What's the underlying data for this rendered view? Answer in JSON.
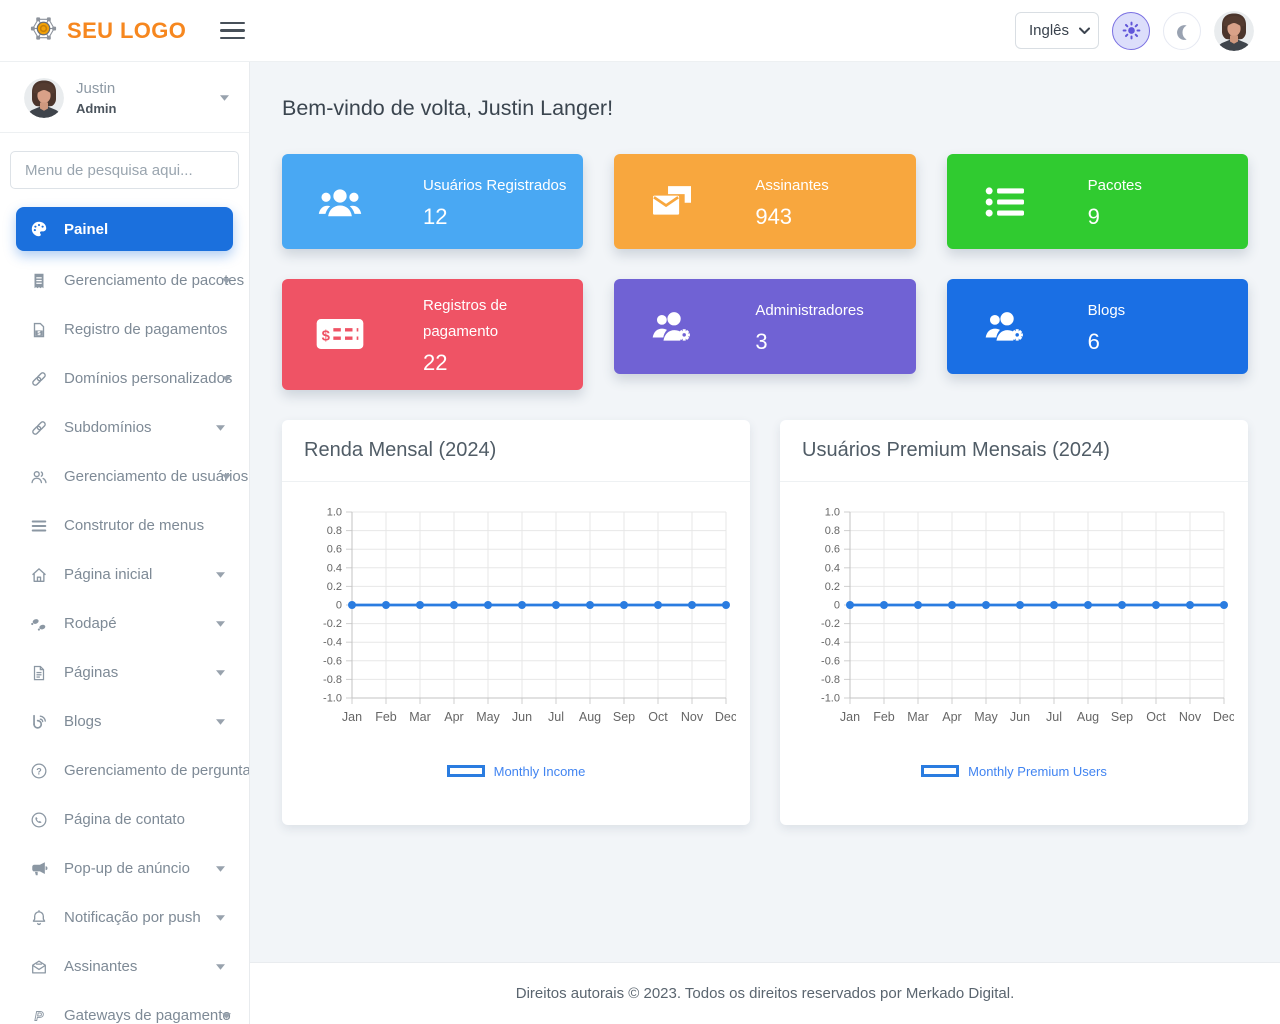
{
  "header": {
    "logo_text": "SEU LOGO",
    "language_select": {
      "value": "Inglês"
    },
    "theme": {
      "light_icon": "sun-icon",
      "dark_icon": "moon-icon"
    }
  },
  "sidebar": {
    "user": {
      "name": "Justin",
      "role": "Admin"
    },
    "search_placeholder": "Menu de pesquisa aqui...",
    "items": [
      {
        "label": "Painel",
        "icon": "palette-icon",
        "active": true,
        "caret": false
      },
      {
        "label": "Gerenciamento de pacotes",
        "icon": "receipt-icon",
        "active": false,
        "caret": true
      },
      {
        "label": "Registro de pagamentos",
        "icon": "invoice-dollar-icon",
        "active": false,
        "caret": false
      },
      {
        "label": "Domínios personalizados",
        "icon": "link-icon",
        "active": false,
        "caret": true
      },
      {
        "label": "Subdomínios",
        "icon": "link-icon",
        "active": false,
        "caret": true
      },
      {
        "label": "Gerenciamento de usuários",
        "icon": "users-outline-icon",
        "active": false,
        "caret": true
      },
      {
        "label": "Construtor de menus",
        "icon": "menu-bars-icon",
        "active": false,
        "caret": false
      },
      {
        "label": "Página inicial",
        "icon": "home-icon",
        "active": false,
        "caret": true
      },
      {
        "label": "Rodapé",
        "icon": "footprints-icon",
        "active": false,
        "caret": true
      },
      {
        "label": "Páginas",
        "icon": "file-icon",
        "active": false,
        "caret": true
      },
      {
        "label": "Blogs",
        "icon": "blog-icon",
        "active": false,
        "caret": true
      },
      {
        "label": "Gerenciamento de perguntas frequentes",
        "icon": "question-icon",
        "active": false,
        "caret": false
      },
      {
        "label": "Página de contato",
        "icon": "contact-icon",
        "active": false,
        "caret": false
      },
      {
        "label": "Pop-up de anúncio",
        "icon": "bullhorn-icon",
        "active": false,
        "caret": true
      },
      {
        "label": "Notificação por push",
        "icon": "bell-icon",
        "active": false,
        "caret": true
      },
      {
        "label": "Assinantes",
        "icon": "envelope-icon",
        "active": false,
        "caret": true
      },
      {
        "label": "Gateways de pagamento",
        "icon": "paypal-icon",
        "active": false,
        "caret": true
      }
    ]
  },
  "main": {
    "welcome": "Bem-vindo de volta, Justin Langer!",
    "stat_cards": [
      {
        "label": "Usuários Registrados",
        "value": "12",
        "color": "#49a8f3",
        "icon": "users-filled-icon"
      },
      {
        "label": "Assinantes",
        "value": "943",
        "color": "#f8a73e",
        "icon": "mail-bulk-icon"
      },
      {
        "label": "Pacotes",
        "value": "9",
        "color": "#30cb30",
        "icon": "list-icon"
      },
      {
        "label": "Registros de pagamento",
        "value": "22",
        "color": "#ef5365",
        "icon": "money-check-icon"
      },
      {
        "label": "Administradores",
        "value": "3",
        "color": "#7062d4",
        "icon": "users-gear-icon"
      },
      {
        "label": "Blogs",
        "value": "6",
        "color": "#1a6fe4",
        "icon": "users-gear-icon"
      }
    ]
  },
  "chart_data": [
    {
      "type": "line",
      "title": "Renda Mensal (2024)",
      "x": [
        "Jan",
        "Feb",
        "Mar",
        "Apr",
        "May",
        "Jun",
        "Jul",
        "Aug",
        "Sep",
        "Oct",
        "Nov",
        "Dec"
      ],
      "series": [
        {
          "name": "Monthly Income",
          "values": [
            0,
            0,
            0,
            0,
            0,
            0,
            0,
            0,
            0,
            0,
            0,
            0
          ]
        }
      ],
      "xlabel": "",
      "ylabel": "",
      "ylim": [
        -1.0,
        1.0
      ],
      "ytick_step": 0.2,
      "grid": true,
      "legend_position": "bottom",
      "line_color": "#2a7ce0",
      "legend_text_color": "#4184f1"
    },
    {
      "type": "line",
      "title": "Usuários Premium Mensais (2024)",
      "x": [
        "Jan",
        "Feb",
        "Mar",
        "Apr",
        "May",
        "Jun",
        "Jul",
        "Aug",
        "Sep",
        "Oct",
        "Nov",
        "Dec"
      ],
      "series": [
        {
          "name": "Monthly Premium Users",
          "values": [
            0,
            0,
            0,
            0,
            0,
            0,
            0,
            0,
            0,
            0,
            0,
            0
          ]
        }
      ],
      "xlabel": "",
      "ylabel": "",
      "ylim": [
        -1.0,
        1.0
      ],
      "ytick_step": 0.2,
      "grid": true,
      "legend_position": "bottom",
      "line_color": "#2a7ce0",
      "legend_text_color": "#4184f1"
    }
  ],
  "footer": {
    "text": "Direitos autorais © 2023. Todos os direitos reservados por Merkado Digital."
  }
}
